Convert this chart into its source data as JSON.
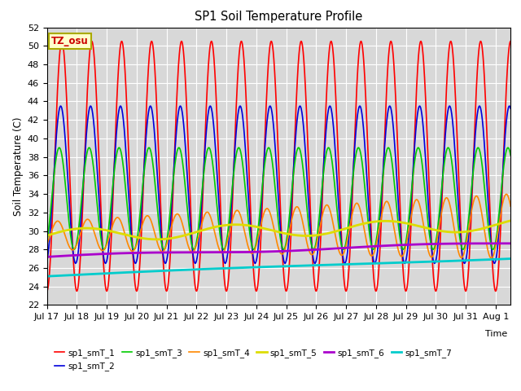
{
  "title": "SP1 Soil Temperature Profile",
  "xlabel": "Time",
  "ylabel": "Soil Temperature (C)",
  "ylim": [
    22,
    52
  ],
  "annotation_text": "TZ_osu",
  "annotation_bg": "#ffffcc",
  "annotation_border": "#aaaa00",
  "annotation_text_color": "#cc0000",
  "series_order": [
    "sp1_smT_1",
    "sp1_smT_2",
    "sp1_smT_3",
    "sp1_smT_4",
    "sp1_smT_5",
    "sp1_smT_6",
    "sp1_smT_7"
  ],
  "series": {
    "sp1_smT_1": {
      "color": "#ff0000",
      "linewidth": 1.2
    },
    "sp1_smT_2": {
      "color": "#0000dd",
      "linewidth": 1.2
    },
    "sp1_smT_3": {
      "color": "#00cc00",
      "linewidth": 1.2
    },
    "sp1_smT_4": {
      "color": "#ff8800",
      "linewidth": 1.2
    },
    "sp1_smT_5": {
      "color": "#dddd00",
      "linewidth": 2.0
    },
    "sp1_smT_6": {
      "color": "#aa00cc",
      "linewidth": 2.0
    },
    "sp1_smT_7": {
      "color": "#00cccc",
      "linewidth": 2.0
    }
  },
  "xtick_labels": [
    "Jul 17",
    "Jul 18",
    "Jul 19",
    "Jul 20",
    "Jul 21",
    "Jul 22",
    "Jul 23",
    "Jul 24",
    "Jul 25",
    "Jul 26",
    "Jul 27",
    "Jul 28",
    "Jul 29",
    "Jul 30",
    "Jul 31",
    "Aug 1"
  ],
  "plot_bg": "#d8d8d8",
  "fig_bg": "#ffffff",
  "grid_color": "#ffffff",
  "n_days": 15.5,
  "samples_per_day": 144
}
